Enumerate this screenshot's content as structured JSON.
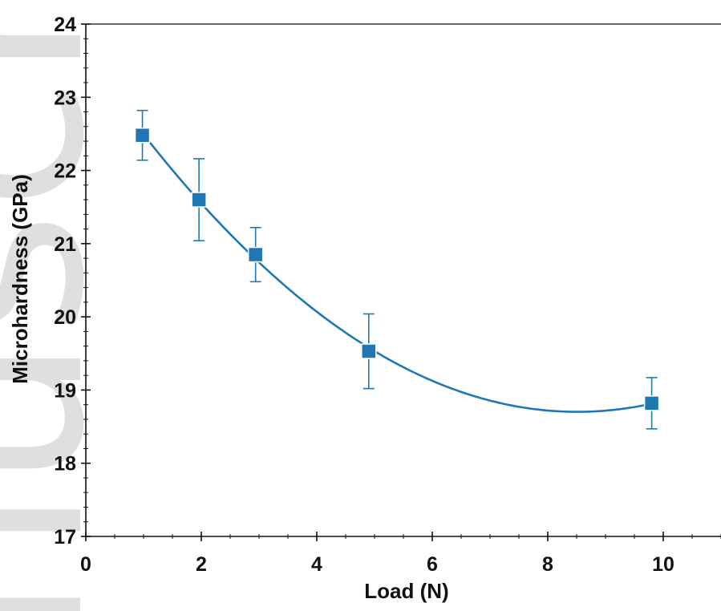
{
  "chart_data": {
    "type": "scatter",
    "xlabel": "Load (N)",
    "ylabel": "Microhardness (GPa)",
    "xlim": [
      0,
      11
    ],
    "ylim": [
      17,
      24
    ],
    "xticks": [
      0,
      2,
      4,
      6,
      8,
      10
    ],
    "yticks": [
      17,
      18,
      19,
      20,
      21,
      22,
      23,
      24
    ],
    "grid": false,
    "legend": "none",
    "series": [
      {
        "x": [
          0.98,
          1.96,
          2.94,
          4.9,
          9.8
        ],
        "y": [
          22.48,
          21.6,
          20.85,
          19.53,
          18.82
        ],
        "error": [
          0.34,
          0.56,
          0.37,
          0.51,
          0.35
        ],
        "marker": "square",
        "fit": "smooth-curve"
      }
    ],
    "color": "#1f77b4"
  },
  "watermark": "nuscript"
}
